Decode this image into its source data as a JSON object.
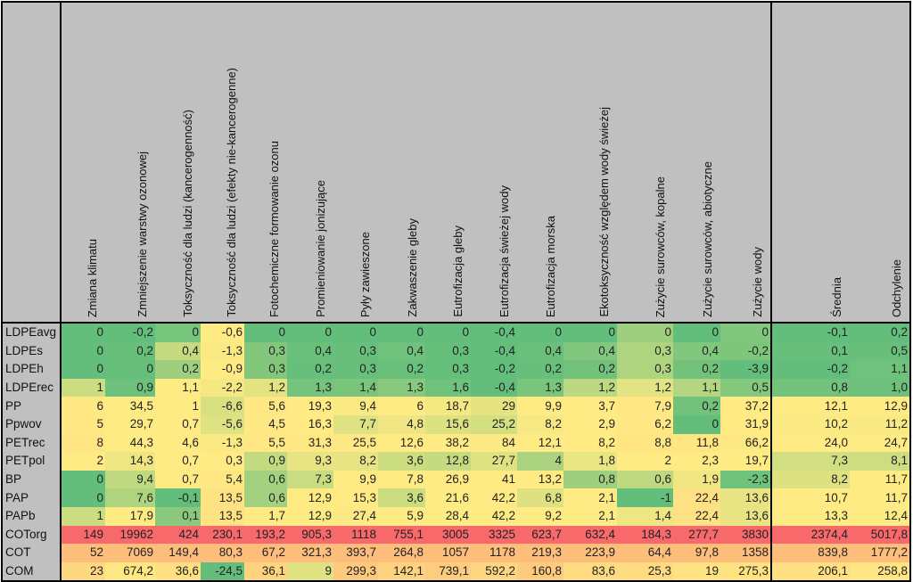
{
  "colors": {
    "min": "#63BE7B",
    "mid": "#FFEB84",
    "max": "#F8696B",
    "header": "#c0c0c0"
  },
  "columns": [
    "Zmiana klimatu",
    "Zmniejszenie warstwy ozonowej",
    "Toksyczność dla ludzi (kancerogenność)",
    "Toksyczność dla ludzi (efekty nie-kancerogenne)",
    "Fotochemiczne formowanie ozonu",
    "Promieniowanie jonizujące",
    "Pyły zawieszone",
    "Zakwaszenie gleby",
    "Eutrofizacja gleby",
    "Eutrofizacja świeżej wody",
    "Eutrofizacja morska",
    "Ekotoksyczność względem wody świeżej",
    "Zużycie surowców, kopalne",
    "Zużycie surowców, abiotyczne",
    "Zużycie wody",
    "Średnia",
    "Odchylenie"
  ],
  "rows": [
    {
      "label": "LDPEavg",
      "values": [
        "0",
        "-0,2",
        "0",
        "-0,6",
        "0",
        "0",
        "0",
        "0",
        "0",
        "-0,4",
        "0",
        "0",
        "0",
        "0",
        "0",
        "-0,1",
        "0,2"
      ]
    },
    {
      "label": "LDPEs",
      "values": [
        "0",
        "0,2",
        "0,4",
        "-1,3",
        "0,3",
        "0,4",
        "0,3",
        "0,4",
        "0,3",
        "-0,4",
        "0,4",
        "0,4",
        "0,3",
        "0,4",
        "-0,2",
        "0,1",
        "0,5"
      ]
    },
    {
      "label": "LDPEh",
      "values": [
        "0",
        "0",
        "0,2",
        "-0,9",
        "0,3",
        "0,2",
        "0,3",
        "0,2",
        "0,3",
        "-0,2",
        "0,2",
        "0,2",
        "0,3",
        "0,2",
        "-3,9",
        "-0,2",
        "1,1"
      ]
    },
    {
      "label": "LDPErec",
      "values": [
        "1",
        "0,9",
        "1,1",
        "-2,2",
        "1,2",
        "1,3",
        "1,4",
        "1,3",
        "1,6",
        "-0,4",
        "1,3",
        "1,2",
        "1,2",
        "1,1",
        "0,5",
        "0,8",
        "1,0"
      ]
    },
    {
      "label": "PP",
      "values": [
        "6",
        "34,5",
        "1",
        "-6,6",
        "5,6",
        "19,3",
        "9,4",
        "6",
        "18,7",
        "29",
        "9,9",
        "3,7",
        "7,9",
        "0,2",
        "37,2",
        "12,1",
        "12,9"
      ]
    },
    {
      "label": "Ppwov",
      "values": [
        "5",
        "29,7",
        "0,7",
        "-5,6",
        "4,5",
        "16,3",
        "7,7",
        "4,8",
        "15,6",
        "25,2",
        "8,2",
        "2,9",
        "6,2",
        "0",
        "31,9",
        "10,2",
        "11,2"
      ]
    },
    {
      "label": "PETrec",
      "values": [
        "8",
        "44,3",
        "4,6",
        "-1,3",
        "5,5",
        "31,3",
        "25,5",
        "12,6",
        "38,2",
        "84",
        "12,1",
        "8,2",
        "8,8",
        "11,8",
        "66,2",
        "24,0",
        "24,7"
      ]
    },
    {
      "label": "PETpol",
      "values": [
        "2",
        "14,3",
        "0,7",
        "0,3",
        "0,9",
        "9,3",
        "8,2",
        "3,6",
        "12,8",
        "27,7",
        "4",
        "1,8",
        "2",
        "2,3",
        "19,7",
        "7,3",
        "8,1"
      ]
    },
    {
      "label": "BP",
      "values": [
        "0",
        "9,4",
        "0,7",
        "5,4",
        "0,6",
        "7,3",
        "9,9",
        "7,8",
        "26,9",
        "41",
        "13,2",
        "0,8",
        "0,6",
        "1,9",
        "-2,3",
        "8,2",
        "11,7"
      ]
    },
    {
      "label": "PAP",
      "values": [
        "0",
        "7,6",
        "-0,1",
        "13,5",
        "0,6",
        "12,9",
        "15,3",
        "3,6",
        "21,6",
        "42,2",
        "6,8",
        "2,1",
        "-1",
        "22,4",
        "13,6",
        "10,7",
        "11,7"
      ]
    },
    {
      "label": "PAPb",
      "values": [
        "1",
        "17,9",
        "0,1",
        "13,5",
        "1,7",
        "12,9",
        "27,4",
        "5,9",
        "28,4",
        "42,2",
        "9,2",
        "2,1",
        "1,4",
        "22,4",
        "13,6",
        "13,3",
        "12,4"
      ]
    },
    {
      "label": "COTorg",
      "values": [
        "149",
        "19962",
        "424",
        "230,1",
        "193,2",
        "905,3",
        "1118",
        "755,1",
        "3005",
        "3325",
        "623,7",
        "632,4",
        "184,3",
        "277,7",
        "3830",
        "2374,4",
        "5017,8"
      ]
    },
    {
      "label": "COT",
      "values": [
        "52",
        "7069",
        "149,4",
        "80,3",
        "67,2",
        "321,3",
        "393,7",
        "264,8",
        "1057",
        "1178",
        "219,3",
        "223,9",
        "64,4",
        "97,8",
        "1358",
        "839,8",
        "1777,2"
      ]
    },
    {
      "label": "COM",
      "values": [
        "23",
        "674,2",
        "36,6",
        "-24,5",
        "36,1",
        "9",
        "299,3",
        "142,1",
        "739,1",
        "592,2",
        "160,8",
        "83,6",
        "25,3",
        "19",
        "275,3",
        "206,1",
        "258,8"
      ]
    }
  ]
}
